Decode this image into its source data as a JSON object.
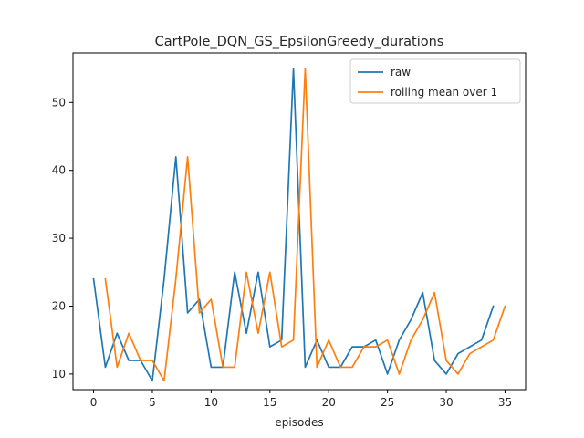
{
  "chart_data": {
    "type": "line",
    "title": "CartPole_DQN_GS_EpsilonGreedy_durations",
    "xlabel": "episodes",
    "ylabel": "",
    "xlim": [
      -1.75,
      36.75
    ],
    "ylim": [
      7.7,
      57.3
    ],
    "xticks": [
      0,
      5,
      10,
      15,
      20,
      25,
      30,
      35
    ],
    "yticks": [
      10,
      20,
      30,
      40,
      50
    ],
    "grid": false,
    "legend_position": "top-right",
    "series": [
      {
        "name": "raw",
        "color": "#1f77b4",
        "x": [
          0,
          1,
          2,
          3,
          4,
          5,
          6,
          7,
          8,
          9,
          10,
          11,
          12,
          13,
          14,
          15,
          16,
          17,
          18,
          19,
          20,
          21,
          22,
          23,
          24,
          25,
          26,
          27,
          28,
          29,
          30,
          31,
          32,
          33,
          34
        ],
        "values": [
          24,
          11,
          16,
          12,
          12,
          9,
          24,
          42,
          19,
          21,
          11,
          11,
          25,
          16,
          25,
          14,
          15,
          55,
          11,
          15,
          11,
          11,
          14,
          14,
          15,
          10,
          15,
          18,
          22,
          12,
          10,
          13,
          14,
          15,
          20
        ]
      },
      {
        "name": "rolling mean over 1",
        "color": "#ff7f0e",
        "x": [
          1,
          2,
          3,
          4,
          5,
          6,
          7,
          8,
          9,
          10,
          11,
          12,
          13,
          14,
          15,
          16,
          17,
          18,
          19,
          20,
          21,
          22,
          23,
          24,
          25,
          26,
          27,
          28,
          29,
          30,
          31,
          32,
          33,
          34,
          35
        ],
        "values": [
          24,
          11,
          16,
          12,
          12,
          9,
          24,
          42,
          19,
          21,
          11,
          11,
          25,
          16,
          25,
          14,
          15,
          55,
          11,
          15,
          11,
          11,
          14,
          14,
          15,
          10,
          15,
          18,
          22,
          12,
          10,
          13,
          14,
          15,
          20
        ]
      }
    ]
  }
}
